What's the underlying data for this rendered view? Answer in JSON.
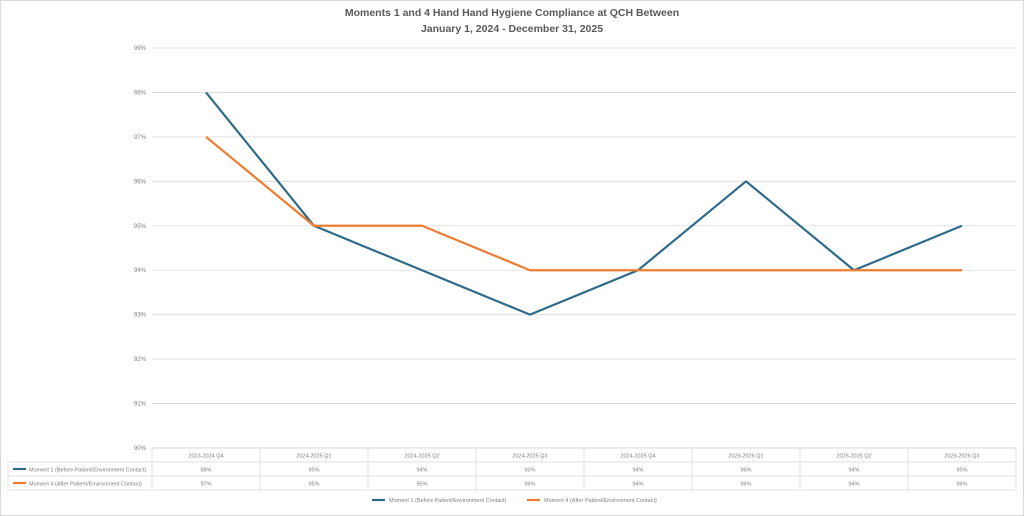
{
  "chart_data": {
    "type": "line",
    "title_line1": "Moments 1 and 4 Hand Hand Hygiene Compliance at QCH Between",
    "title_line2": "January 1, 2024 - December 31, 2025",
    "ylim": [
      90,
      99
    ],
    "yticks": [
      90,
      91,
      92,
      93,
      94,
      95,
      96,
      97,
      98,
      99
    ],
    "ytick_labels": [
      "90%",
      "91%",
      "92%",
      "93%",
      "94%",
      "95%",
      "96%",
      "97%",
      "98%",
      "99%"
    ],
    "grid": true,
    "legend_position": "bottom",
    "categories": [
      "2023-2024 Q4",
      "2024-2025 Q1",
      "2024-2025 Q2",
      "2024-2025 Q3",
      "2024-2025 Q4",
      "2025-2026 Q1",
      "2025-2026 Q2",
      "2025-2026 Q3"
    ],
    "series": [
      {
        "name": "Moment 1 (Before Patient/Environment Contact)",
        "color": "#2e6a8a",
        "values": [
          98,
          95,
          94,
          93,
          94,
          96,
          94,
          95
        ],
        "labels": [
          "98%",
          "95%",
          "94%",
          "93%",
          "94%",
          "96%",
          "94%",
          "95%"
        ]
      },
      {
        "name": "Moment 4 (After Patient/Environment Contact)",
        "color": "#ed7d31",
        "values": [
          97,
          95,
          95,
          94,
          94,
          94,
          94,
          94
        ],
        "labels": [
          "97%",
          "95%",
          "95%",
          "94%",
          "94%",
          "94%",
          "94%",
          "94%"
        ]
      }
    ]
  }
}
